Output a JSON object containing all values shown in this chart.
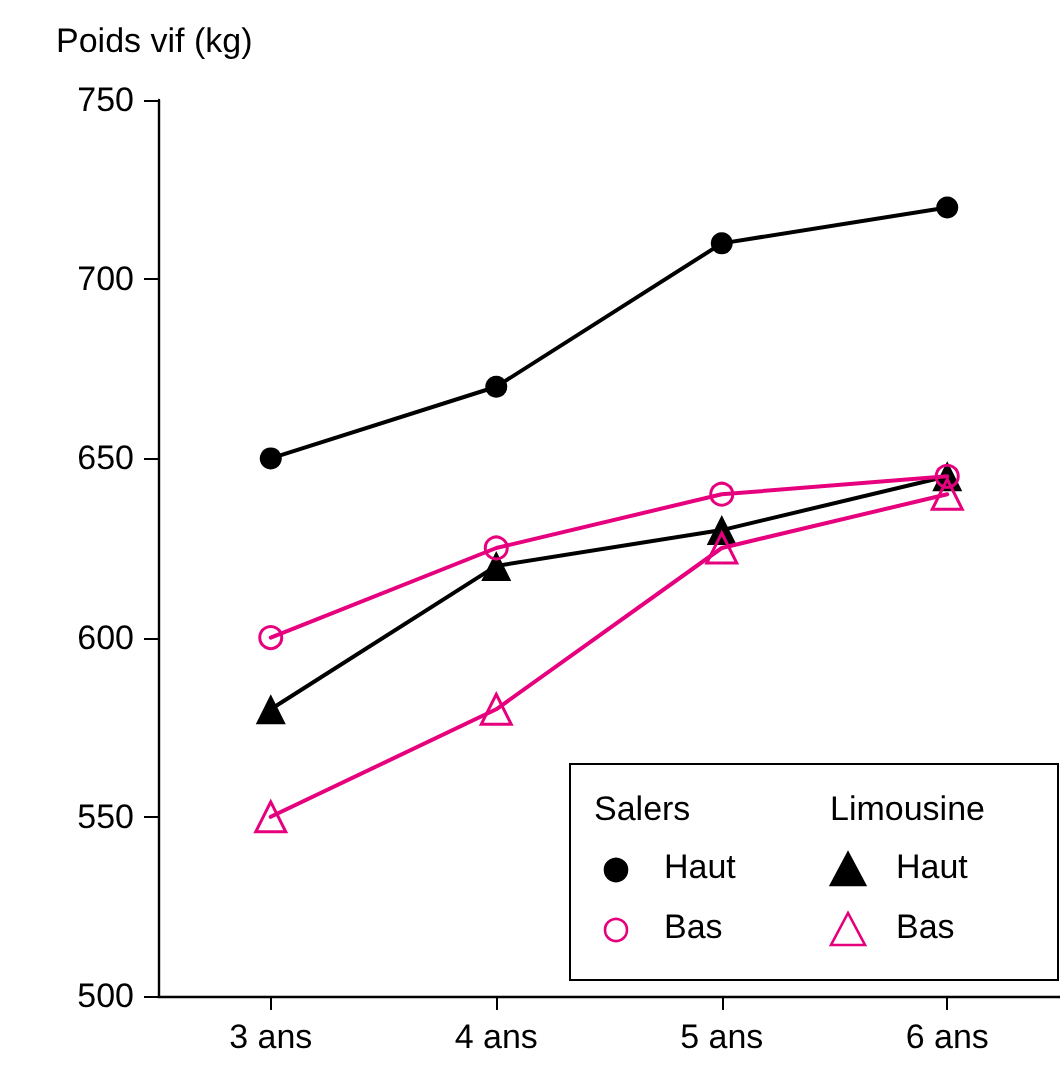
{
  "chart_data": {
    "type": "line",
    "ylabel": "Poids vif (kg)",
    "categories": [
      "3 ans",
      "4 ans",
      "5 ans",
      "6 ans"
    ],
    "series": [
      {
        "name": "Haut",
        "color": "#000000",
        "marker": "circle",
        "values": [
          650,
          670,
          710,
          720
        ]
      },
      {
        "name": "Bas",
        "color": "#e6007e",
        "marker": "circle",
        "values": [
          600,
          625,
          640,
          645
        ]
      },
      {
        "name": "Haut",
        "color": "#000000",
        "marker": "triangle",
        "values": [
          580,
          620,
          630,
          645
        ]
      },
      {
        "name": "Bas",
        "color": "#e6007e",
        "marker": "triangle",
        "values": [
          550,
          580,
          625,
          640
        ]
      }
    ],
    "annotations": [
      "Salers",
      "Limousine"
    ],
    "ylim": [
      500,
      750
    ],
    "yticks": [
      500,
      550,
      600,
      650,
      700,
      750
    ],
    "grid": false,
    "legend": "bottom right",
    "line_style": "solid"
  }
}
